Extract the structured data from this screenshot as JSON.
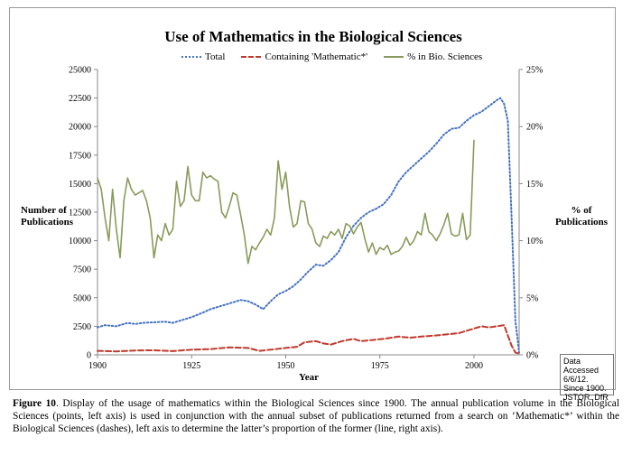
{
  "figure": {
    "caption_label": "Figure 10",
    "caption_text": ". Display of the usage of mathematics within the Biological Sciences since 1900. The annual publication volume in the Biological Sciences (points, left axis) is used in conjunction with the annual subset of publications returned from a search on ‘Mathematic*’ within the Biological Sciences (dashes), left axis to determine the latter’s proportion of the former (line, right axis).",
    "note": "Data Accessed 6/6/12. Since 1900. JSTOR. DfR"
  },
  "colors": {
    "total": "#4472c4",
    "math": "#c0392b",
    "pct": "#8a9a5b"
  },
  "chart_data": {
    "type": "line",
    "title": "Use of Mathematics in the Biological Sciences",
    "xlabel": "Year",
    "ylabel_left": "Number of Publications",
    "ylabel_right": "% of Publications",
    "xlim": [
      1900,
      2012
    ],
    "ylim_left": [
      0,
      25000
    ],
    "ylim_right": [
      0,
      25
    ],
    "x_ticks": [
      "1900",
      "1925",
      "1950",
      "1975",
      "2000"
    ],
    "x_tick_values": [
      1900,
      1925,
      1950,
      1975,
      2000
    ],
    "y_ticks_left": [
      "0",
      "2500",
      "5000",
      "7500",
      "10000",
      "12500",
      "15000",
      "17500",
      "20000",
      "22500",
      "25000"
    ],
    "y_ticks_right": [
      "0%",
      "5%",
      "10%",
      "15%",
      "20%",
      "25%"
    ],
    "legend_position": "top",
    "series": [
      {
        "name": "Total",
        "axis": "left",
        "style": "dotted",
        "points": [
          [
            1900,
            2400
          ],
          [
            1902,
            2600
          ],
          [
            1905,
            2500
          ],
          [
            1908,
            2800
          ],
          [
            1910,
            2700
          ],
          [
            1912,
            2800
          ],
          [
            1915,
            2850
          ],
          [
            1918,
            2900
          ],
          [
            1920,
            2800
          ],
          [
            1922,
            3000
          ],
          [
            1925,
            3300
          ],
          [
            1928,
            3700
          ],
          [
            1930,
            4000
          ],
          [
            1932,
            4200
          ],
          [
            1935,
            4500
          ],
          [
            1938,
            4800
          ],
          [
            1940,
            4700
          ],
          [
            1942,
            4400
          ],
          [
            1944,
            4000
          ],
          [
            1946,
            4700
          ],
          [
            1948,
            5300
          ],
          [
            1950,
            5600
          ],
          [
            1952,
            6000
          ],
          [
            1954,
            6600
          ],
          [
            1956,
            7300
          ],
          [
            1958,
            7900
          ],
          [
            1960,
            7800
          ],
          [
            1962,
            8300
          ],
          [
            1964,
            9000
          ],
          [
            1966,
            10300
          ],
          [
            1968,
            11300
          ],
          [
            1970,
            12000
          ],
          [
            1972,
            12500
          ],
          [
            1974,
            12800
          ],
          [
            1976,
            13200
          ],
          [
            1978,
            14000
          ],
          [
            1980,
            15200
          ],
          [
            1982,
            16000
          ],
          [
            1984,
            16600
          ],
          [
            1986,
            17200
          ],
          [
            1988,
            17800
          ],
          [
            1990,
            18500
          ],
          [
            1992,
            19300
          ],
          [
            1994,
            19800
          ],
          [
            1996,
            19900
          ],
          [
            1998,
            20500
          ],
          [
            2000,
            21000
          ],
          [
            2002,
            21300
          ],
          [
            2004,
            21800
          ],
          [
            2006,
            22300
          ],
          [
            2007,
            22500
          ],
          [
            2008,
            22000
          ],
          [
            2009,
            20500
          ],
          [
            2010,
            12000
          ],
          [
            2011,
            3000
          ],
          [
            2012,
            200
          ]
        ]
      },
      {
        "name": "Containing 'Mathematic*'",
        "axis": "left",
        "style": "dashed",
        "points": [
          [
            1900,
            350
          ],
          [
            1905,
            300
          ],
          [
            1910,
            380
          ],
          [
            1915,
            400
          ],
          [
            1920,
            330
          ],
          [
            1925,
            450
          ],
          [
            1930,
            500
          ],
          [
            1935,
            650
          ],
          [
            1940,
            600
          ],
          [
            1943,
            350
          ],
          [
            1946,
            450
          ],
          [
            1950,
            600
          ],
          [
            1953,
            700
          ],
          [
            1955,
            1100
          ],
          [
            1958,
            1200
          ],
          [
            1960,
            1000
          ],
          [
            1962,
            900
          ],
          [
            1965,
            1200
          ],
          [
            1968,
            1400
          ],
          [
            1970,
            1200
          ],
          [
            1973,
            1300
          ],
          [
            1976,
            1400
          ],
          [
            1980,
            1600
          ],
          [
            1983,
            1500
          ],
          [
            1986,
            1600
          ],
          [
            1990,
            1700
          ],
          [
            1993,
            1800
          ],
          [
            1996,
            1900
          ],
          [
            1999,
            2200
          ],
          [
            2002,
            2500
          ],
          [
            2004,
            2400
          ],
          [
            2006,
            2500
          ],
          [
            2008,
            2600
          ],
          [
            2010,
            800
          ],
          [
            2011,
            200
          ],
          [
            2012,
            100
          ]
        ]
      },
      {
        "name": "% in Bio. Sciences",
        "axis": "right",
        "style": "solid",
        "points": [
          [
            1900,
            15.5
          ],
          [
            1901,
            14.5
          ],
          [
            1902,
            12
          ],
          [
            1903,
            10
          ],
          [
            1904,
            14.5
          ],
          [
            1905,
            11
          ],
          [
            1906,
            8.5
          ],
          [
            1907,
            13.5
          ],
          [
            1908,
            15.5
          ],
          [
            1909,
            14.5
          ],
          [
            1910,
            14
          ],
          [
            1911,
            14.2
          ],
          [
            1912,
            14.4
          ],
          [
            1913,
            13.5
          ],
          [
            1914,
            12
          ],
          [
            1915,
            8.5
          ],
          [
            1916,
            10.5
          ],
          [
            1917,
            10
          ],
          [
            1918,
            11.5
          ],
          [
            1919,
            10.5
          ],
          [
            1920,
            11
          ],
          [
            1921,
            15.2
          ],
          [
            1922,
            13
          ],
          [
            1923,
            13.5
          ],
          [
            1924,
            16.5
          ],
          [
            1925,
            14
          ],
          [
            1926,
            13.5
          ],
          [
            1927,
            13.5
          ],
          [
            1928,
            16
          ],
          [
            1929,
            15.5
          ],
          [
            1930,
            15.7
          ],
          [
            1931,
            15.4
          ],
          [
            1932,
            15.2
          ],
          [
            1933,
            12.5
          ],
          [
            1934,
            12
          ],
          [
            1935,
            13
          ],
          [
            1936,
            14.2
          ],
          [
            1937,
            14
          ],
          [
            1938,
            12.3
          ],
          [
            1939,
            10.5
          ],
          [
            1940,
            8
          ],
          [
            1941,
            9.5
          ],
          [
            1942,
            9.2
          ],
          [
            1943,
            9.8
          ],
          [
            1944,
            10.3
          ],
          [
            1945,
            11
          ],
          [
            1946,
            10.5
          ],
          [
            1947,
            12
          ],
          [
            1948,
            17
          ],
          [
            1949,
            14.5
          ],
          [
            1950,
            16
          ],
          [
            1951,
            13
          ],
          [
            1952,
            11.2
          ],
          [
            1953,
            11.5
          ],
          [
            1954,
            13.5
          ],
          [
            1955,
            13.4
          ],
          [
            1956,
            11.5
          ],
          [
            1957,
            11
          ],
          [
            1958,
            9.8
          ],
          [
            1959,
            9.5
          ],
          [
            1960,
            10.4
          ],
          [
            1961,
            10.2
          ],
          [
            1962,
            10.8
          ],
          [
            1963,
            10.5
          ],
          [
            1964,
            11
          ],
          [
            1965,
            10.2
          ],
          [
            1966,
            11.5
          ],
          [
            1967,
            11.3
          ],
          [
            1968,
            10.6
          ],
          [
            1969,
            11.2
          ],
          [
            1970,
            11.6
          ],
          [
            1971,
            10.2
          ],
          [
            1972,
            9
          ],
          [
            1973,
            9.8
          ],
          [
            1974,
            8.8
          ],
          [
            1975,
            9.4
          ],
          [
            1976,
            9.2
          ],
          [
            1977,
            9.6
          ],
          [
            1978,
            8.8
          ],
          [
            1979,
            9
          ],
          [
            1980,
            9.1
          ],
          [
            1981,
            9.5
          ],
          [
            1982,
            10.3
          ],
          [
            1983,
            9.6
          ],
          [
            1984,
            10
          ],
          [
            1985,
            10.8
          ],
          [
            1986,
            10.5
          ],
          [
            1987,
            12.4
          ],
          [
            1988,
            10.8
          ],
          [
            1989,
            10.5
          ],
          [
            1990,
            10
          ],
          [
            1991,
            10.6
          ],
          [
            1992,
            11.4
          ],
          [
            1993,
            12.4
          ],
          [
            1994,
            10.6
          ],
          [
            1995,
            10.4
          ],
          [
            1996,
            10.5
          ],
          [
            1997,
            12.4
          ],
          [
            1998,
            10.1
          ],
          [
            1999,
            10.5
          ],
          [
            2000,
            18.8
          ]
        ]
      }
    ]
  }
}
